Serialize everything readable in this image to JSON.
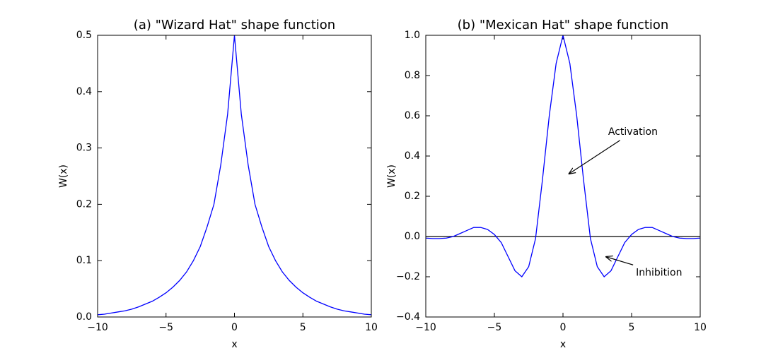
{
  "chart_data": [
    {
      "type": "line",
      "title": "(a) \"Wizard Hat\" shape function",
      "x_label": "x",
      "y_label": "W(x)",
      "x": [
        -10,
        -9.5,
        -9,
        -8.5,
        -8,
        -7.5,
        -7,
        -6.5,
        -6,
        -5.5,
        -5,
        -4.5,
        -4,
        -3.5,
        -3,
        -2.5,
        -2,
        -1.5,
        -1,
        -0.5,
        0,
        0.5,
        1,
        1.5,
        2,
        2.5,
        3,
        3.5,
        4,
        4.5,
        5,
        5.5,
        6,
        6.5,
        7,
        7.5,
        8,
        8.5,
        9,
        9.5,
        10
      ],
      "series": [
        {
          "color": "#0000ff",
          "values": [
            0.004,
            0.005,
            0.007,
            0.009,
            0.011,
            0.014,
            0.018,
            0.023,
            0.028,
            0.035,
            0.043,
            0.053,
            0.065,
            0.08,
            0.1,
            0.125,
            0.16,
            0.2,
            0.27,
            0.36,
            0.5,
            0.36,
            0.27,
            0.2,
            0.16,
            0.125,
            0.1,
            0.08,
            0.065,
            0.053,
            0.043,
            0.035,
            0.028,
            0.023,
            0.018,
            0.014,
            0.011,
            0.009,
            0.007,
            0.005,
            0.004
          ]
        }
      ],
      "xlim": [
        -10,
        10
      ],
      "xticks": [
        {
          "value": -10,
          "label": "−10"
        },
        {
          "value": -5,
          "label": "−5"
        },
        0,
        5,
        10
      ],
      "ylim": [
        0,
        0.5
      ],
      "yticks": [
        {
          "value": 0,
          "label": "0.0"
        },
        0.1,
        0.2,
        0.3,
        0.4,
        0.5
      ]
    },
    {
      "type": "line",
      "title": "(b) \"Mexican Hat\" shape function",
      "x_label": "x",
      "y_label": "W(x)",
      "x": [
        -10,
        -9.5,
        -9,
        -8.5,
        -8,
        -7.5,
        -7,
        -6.5,
        -6,
        -5.5,
        -5,
        -4.5,
        -4,
        -3.5,
        -3,
        -2.5,
        -2,
        -1.5,
        -1,
        -0.5,
        0,
        0.5,
        1,
        1.5,
        2,
        2.5,
        3,
        3.5,
        4,
        4.5,
        5,
        5.5,
        6,
        6.5,
        7,
        7.5,
        8,
        8.5,
        9,
        9.5,
        10
      ],
      "series": [
        {
          "color": "#0000ff",
          "values": [
            -0.008,
            -0.01,
            -0.01,
            -0.008,
            0,
            0.015,
            0.03,
            0.045,
            0.045,
            0.035,
            0.01,
            -0.03,
            -0.1,
            -0.17,
            -0.2,
            -0.15,
            -0.01,
            0.28,
            0.6,
            0.86,
            1,
            0.86,
            0.6,
            0.28,
            -0.01,
            -0.15,
            -0.2,
            -0.17,
            -0.1,
            -0.03,
            0.01,
            0.035,
            0.045,
            0.045,
            0.03,
            0.015,
            0,
            -0.008,
            -0.01,
            -0.01,
            -0.008
          ]
        }
      ],
      "hline": {
        "value": 0,
        "color": "#000000"
      },
      "annotations": [
        {
          "text": "Activation",
          "xy": [
            0.4,
            0.31
          ],
          "xytext": [
            5.1,
            0.52
          ]
        },
        {
          "text": "Inhibition",
          "xy": [
            3.1,
            -0.1
          ],
          "xytext": [
            7.0,
            -0.18
          ]
        }
      ],
      "xlim": [
        -10,
        10
      ],
      "xticks": [
        {
          "value": -10,
          "label": "−10"
        },
        {
          "value": -5,
          "label": "−5"
        },
        0,
        5,
        10
      ],
      "ylim": [
        -0.4,
        1.0
      ],
      "yticks": [
        {
          "value": -0.4,
          "label": "−0.4"
        },
        {
          "value": -0.2,
          "label": "−0.2"
        },
        {
          "value": 0,
          "label": "0.0"
        },
        0.2,
        0.4,
        0.6,
        0.8,
        {
          "value": 1.0,
          "label": "1.0"
        }
      ]
    }
  ]
}
